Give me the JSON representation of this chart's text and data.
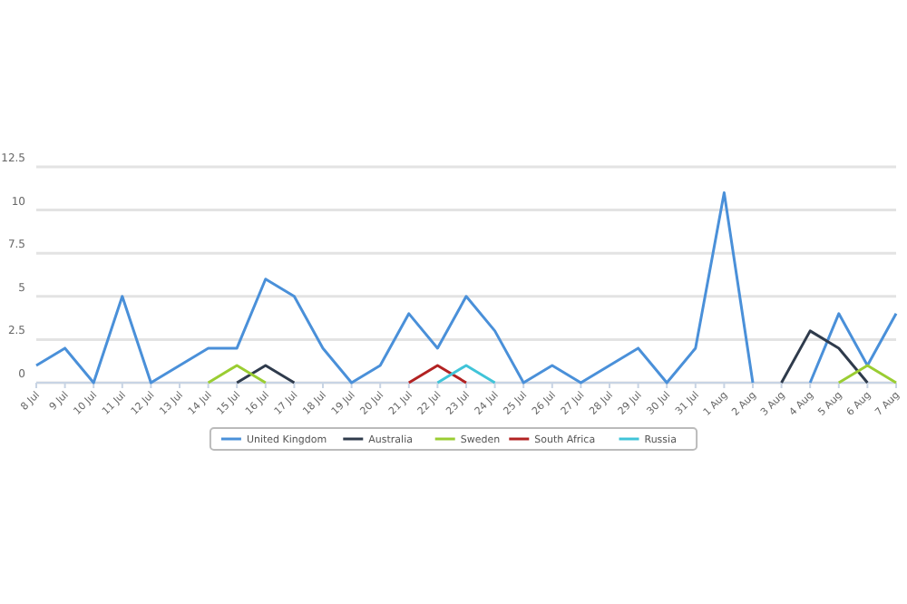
{
  "chart_data": {
    "type": "line",
    "categories": [
      "8 Jul",
      "9 Jul",
      "10 Jul",
      "11 Jul",
      "12 Jul",
      "13 Jul",
      "14 Jul",
      "15 Jul",
      "16 Jul",
      "17 Jul",
      "18 Jul",
      "19 Jul",
      "20 Jul",
      "21 Jul",
      "22 Jul",
      "23 Jul",
      "24 Jul",
      "25 Jul",
      "26 Jul",
      "27 Jul",
      "28 Jul",
      "29 Jul",
      "30 Jul",
      "31 Jul",
      "1 Aug",
      "2 Aug",
      "3 Aug",
      "4 Aug",
      "5 Aug",
      "6 Aug",
      "7 Aug"
    ],
    "series": [
      {
        "name": "United Kingdom",
        "color": "#4a90d9",
        "values": [
          1,
          2,
          0,
          5,
          0,
          1,
          2,
          2,
          6,
          5,
          2,
          0,
          1,
          4,
          2,
          5,
          3,
          0,
          1,
          0,
          1,
          2,
          0,
          2,
          11,
          0,
          null,
          0,
          4,
          1,
          4
        ]
      },
      {
        "name": "Australia",
        "color": "#2f3b4c",
        "values": [
          null,
          null,
          null,
          null,
          null,
          null,
          null,
          0,
          1,
          0,
          null,
          null,
          null,
          null,
          null,
          null,
          null,
          null,
          null,
          null,
          null,
          null,
          null,
          null,
          null,
          null,
          0,
          3,
          2,
          0,
          null
        ]
      },
      {
        "name": "Sweden",
        "color": "#9acd32",
        "values": [
          null,
          null,
          null,
          null,
          null,
          null,
          0,
          1,
          0,
          null,
          null,
          null,
          null,
          null,
          null,
          null,
          null,
          null,
          null,
          null,
          null,
          null,
          null,
          null,
          null,
          null,
          null,
          null,
          0,
          1,
          0
        ]
      },
      {
        "name": "South Africa",
        "color": "#b22222",
        "values": [
          null,
          null,
          null,
          null,
          null,
          null,
          null,
          null,
          null,
          null,
          null,
          null,
          null,
          0,
          1,
          0,
          null,
          null,
          null,
          null,
          null,
          null,
          null,
          null,
          null,
          null,
          null,
          null,
          null,
          null,
          null
        ]
      },
      {
        "name": "Russia",
        "color": "#40c4d8",
        "values": [
          null,
          null,
          null,
          null,
          null,
          null,
          null,
          null,
          null,
          null,
          null,
          null,
          null,
          null,
          0,
          1,
          0,
          null,
          null,
          null,
          null,
          null,
          null,
          null,
          null,
          null,
          null,
          null,
          null,
          null,
          null
        ]
      }
    ],
    "ylim": [
      0,
      12.5
    ],
    "yticks": [
      0,
      2.5,
      5,
      7.5,
      10,
      12.5
    ],
    "grid": "y",
    "legend": "bottom",
    "marker": "none",
    "line_style": "solid"
  }
}
